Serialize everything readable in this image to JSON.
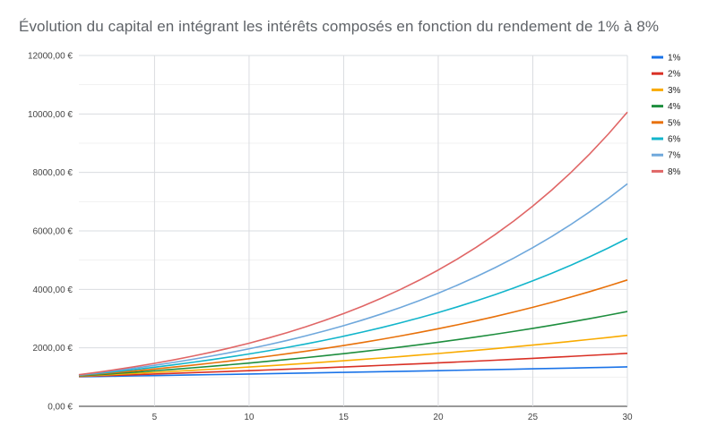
{
  "chart_data": {
    "type": "line",
    "title": "Évolution du capital en intégrant les intérêts composés en fonction du rendement de 1% à 8%",
    "xlabel": "",
    "ylabel": "",
    "x": [
      1,
      2,
      3,
      4,
      5,
      6,
      7,
      8,
      9,
      10,
      11,
      12,
      13,
      14,
      15,
      16,
      17,
      18,
      19,
      20,
      21,
      22,
      23,
      24,
      25,
      26,
      27,
      28,
      29,
      30
    ],
    "xlim": [
      1,
      30
    ],
    "ylim": [
      0,
      12000
    ],
    "x_ticks": [
      "5",
      "10",
      "15",
      "20",
      "25",
      "30"
    ],
    "y_ticks": [
      "0,00 €",
      "2000,00 €",
      "4000,00 €",
      "6000,00 €",
      "8000,00 €",
      "10000,00 €",
      "12000,00 €"
    ],
    "grid": true,
    "legend_position": "right",
    "series": [
      {
        "name": "1%",
        "color": "#1a73e8",
        "values": [
          1010.0,
          1020.1,
          1030.3,
          1040.6,
          1051.01,
          1061.52,
          1072.14,
          1082.86,
          1093.69,
          1104.62,
          1115.67,
          1126.83,
          1138.09,
          1149.47,
          1160.97,
          1172.58,
          1184.3,
          1196.15,
          1208.11,
          1220.19,
          1232.39,
          1244.72,
          1257.16,
          1269.73,
          1282.43,
          1295.26,
          1308.21,
          1321.29,
          1334.5,
          1347.85
        ]
      },
      {
        "name": "2%",
        "color": "#d93025",
        "values": [
          1020.0,
          1040.4,
          1061.21,
          1082.43,
          1104.08,
          1126.16,
          1148.69,
          1171.66,
          1195.09,
          1218.99,
          1243.37,
          1268.24,
          1293.61,
          1319.48,
          1345.87,
          1372.79,
          1400.24,
          1428.25,
          1456.81,
          1485.95,
          1515.67,
          1545.98,
          1576.9,
          1608.44,
          1640.61,
          1673.42,
          1706.89,
          1741.02,
          1775.84,
          1811.36
        ]
      },
      {
        "name": "3%",
        "color": "#f9ab00",
        "values": [
          1030.0,
          1060.9,
          1092.73,
          1125.51,
          1159.27,
          1194.05,
          1229.87,
          1266.77,
          1304.77,
          1343.92,
          1384.23,
          1425.76,
          1468.53,
          1512.59,
          1557.97,
          1604.71,
          1652.85,
          1702.43,
          1753.51,
          1806.11,
          1860.29,
          1916.1,
          1973.59,
          2032.79,
          2093.78,
          2156.59,
          2221.29,
          2287.93,
          2356.57,
          2427.26
        ]
      },
      {
        "name": "4%",
        "color": "#1e8e3e",
        "values": [
          1040.0,
          1081.6,
          1124.86,
          1169.86,
          1216.65,
          1265.32,
          1315.93,
          1368.57,
          1423.31,
          1480.24,
          1539.45,
          1601.03,
          1665.07,
          1731.68,
          1800.94,
          1872.98,
          1947.9,
          2025.82,
          2106.85,
          2191.12,
          2278.77,
          2369.92,
          2464.72,
          2563.3,
          2665.84,
          2772.47,
          2883.37,
          2998.7,
          3118.65,
          3243.4
        ]
      },
      {
        "name": "5%",
        "color": "#e8710a",
        "values": [
          1050.0,
          1102.5,
          1157.63,
          1215.51,
          1276.28,
          1340.1,
          1407.1,
          1477.46,
          1551.33,
          1628.89,
          1710.34,
          1795.86,
          1885.65,
          1979.93,
          2078.93,
          2182.87,
          2292.02,
          2406.62,
          2526.95,
          2653.3,
          2785.96,
          2925.26,
          3071.52,
          3225.1,
          3386.35,
          3555.67,
          3733.46,
          3920.13,
          4116.14,
          4321.94
        ]
      },
      {
        "name": "6%",
        "color": "#12b5cb",
        "values": [
          1060.0,
          1123.6,
          1191.02,
          1262.48,
          1338.23,
          1418.52,
          1503.63,
          1593.85,
          1689.48,
          1790.85,
          1898.3,
          2012.2,
          2132.93,
          2260.9,
          2396.56,
          2540.35,
          2692.77,
          2854.34,
          3025.6,
          3207.14,
          3399.56,
          3603.54,
          3819.75,
          4048.93,
          4291.87,
          4549.38,
          4822.35,
          5111.69,
          5418.39,
          5743.49
        ]
      },
      {
        "name": "7%",
        "color": "#6fa8dc",
        "values": [
          1070.0,
          1144.9,
          1225.04,
          1310.8,
          1402.55,
          1500.73,
          1605.78,
          1718.19,
          1838.46,
          1967.15,
          2104.85,
          2252.19,
          2409.85,
          2578.53,
          2759.03,
          2952.16,
          3158.82,
          3379.93,
          3616.53,
          3869.68,
          4140.56,
          4430.4,
          4740.53,
          5072.37,
          5427.43,
          5807.35,
          6213.87,
          6648.84,
          7114.26,
          7612.26
        ]
      },
      {
        "name": "8%",
        "color": "#e06666",
        "values": [
          1080.0,
          1166.4,
          1259.71,
          1360.49,
          1469.33,
          1586.87,
          1713.82,
          1850.93,
          1999.0,
          2158.92,
          2331.64,
          2518.17,
          2719.62,
          2937.19,
          3172.17,
          3425.94,
          3700.02,
          3996.02,
          4315.7,
          4660.96,
          5033.83,
          5436.54,
          5871.46,
          6341.18,
          6848.48,
          7396.35,
          7988.06,
          8627.11,
          9317.27,
          10062.66
        ]
      }
    ]
  }
}
